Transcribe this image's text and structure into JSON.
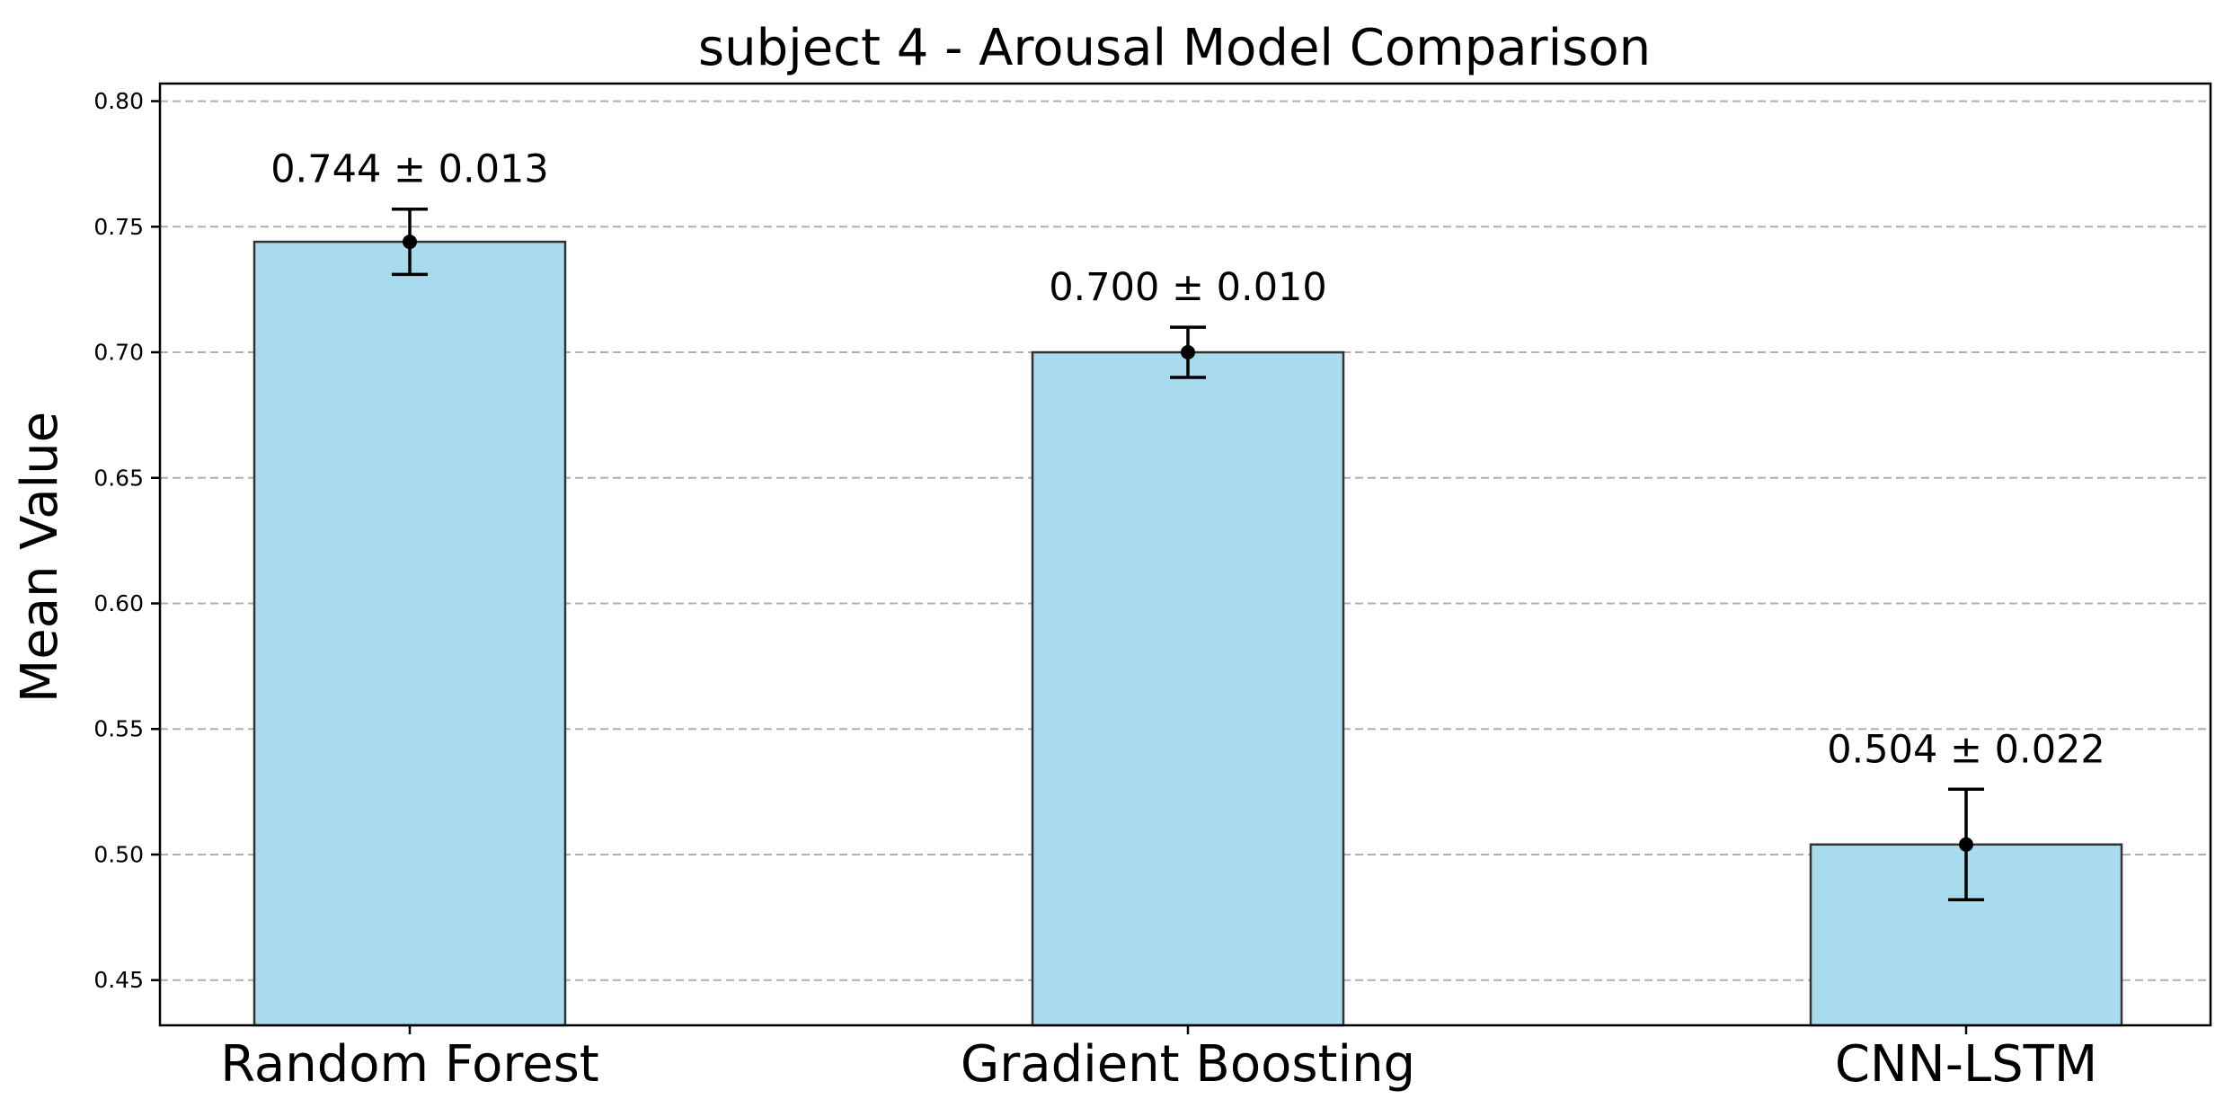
{
  "chart_data": {
    "type": "bar",
    "title": "subject 4 - Arousal Model Comparison",
    "xlabel": "",
    "ylabel": "Mean Value",
    "categories": [
      "Random Forest",
      "Gradient Boosting",
      "CNN-LSTM"
    ],
    "values": [
      0.744,
      0.7,
      0.504
    ],
    "errors": [
      0.013,
      0.01,
      0.022
    ],
    "annotations": [
      "0.744 ± 0.013",
      "0.700 ± 0.010",
      "0.504 ± 0.022"
    ],
    "ylim": [
      0.432,
      0.807
    ],
    "yticks": [
      0.45,
      0.5,
      0.55,
      0.6,
      0.65,
      0.7,
      0.75,
      0.8
    ],
    "ytick_labels": [
      "0.45",
      "0.50",
      "0.55",
      "0.60",
      "0.65",
      "0.70",
      "0.75",
      "0.80"
    ],
    "grid": "y-dashed",
    "legend": "none",
    "colors": {
      "bar_fill": "#a8dbed",
      "bar_edge": "#333333",
      "error_bar": "#000000",
      "grid": "#b0b0b0"
    }
  }
}
